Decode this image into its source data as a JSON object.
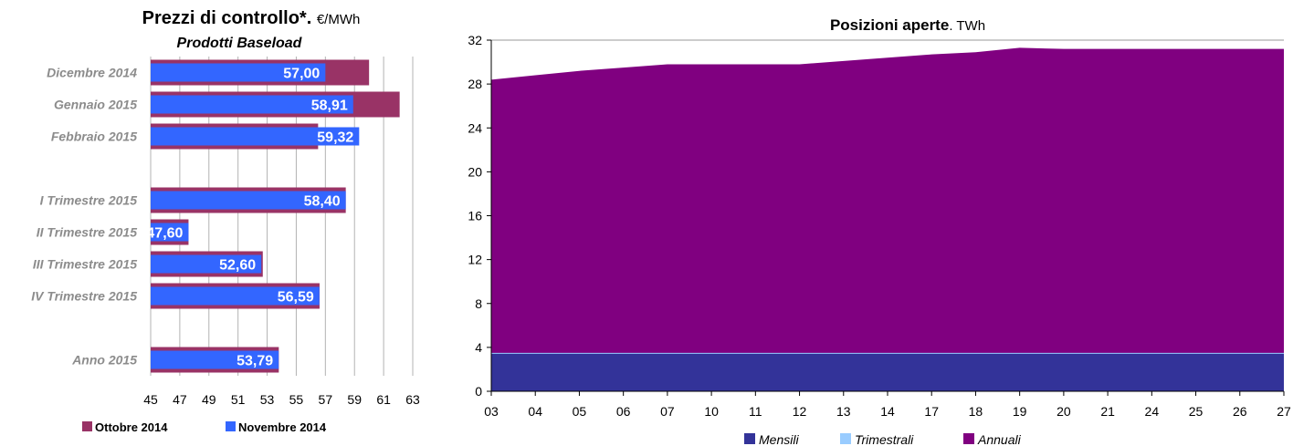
{
  "chart_data": [
    {
      "type": "bar",
      "orientation": "horizontal",
      "title": "Prezzi di controllo*.",
      "title_unit": "€/MWh",
      "subtitle": "Prodotti Baseload",
      "categories": [
        "Dicembre 2014",
        "Gennaio 2015",
        "Febbraio 2015",
        "",
        "I Trimestre 2015",
        "II Trimestre 2015",
        "III Trimestre 2015",
        "IV Trimestre 2015",
        "",
        "Anno 2015"
      ],
      "series": [
        {
          "name": "Ottobre 2014",
          "color": "#993366",
          "values": [
            60.0,
            62.1,
            56.5,
            null,
            58.4,
            47.6,
            52.7,
            56.6,
            null,
            53.8
          ]
        },
        {
          "name": "Novembre 2014",
          "color": "#3366FF",
          "values": [
            57.0,
            58.91,
            59.32,
            null,
            58.4,
            47.6,
            52.6,
            56.59,
            null,
            53.79
          ]
        }
      ],
      "data_labels": [
        "57,00",
        "58,91",
        "59,32",
        "",
        "58,40",
        "47,60",
        "52,60",
        "56,59",
        "",
        "53,79"
      ],
      "xlim": [
        45,
        63
      ],
      "xticks": [
        "45",
        "47",
        "49",
        "51",
        "53",
        "55",
        "57",
        "59",
        "61",
        "63"
      ],
      "grid": true,
      "legend_position": "bottom"
    },
    {
      "type": "area",
      "stacked": true,
      "title": "Posizioni aperte",
      "title_unit": "TWh",
      "x": [
        "03",
        "04",
        "05",
        "06",
        "07",
        "10",
        "11",
        "12",
        "13",
        "14",
        "17",
        "18",
        "19",
        "20",
        "21",
        "24",
        "25",
        "26",
        "27"
      ],
      "series": [
        {
          "name": "Mensili",
          "color": "#333399",
          "values": [
            3.5,
            3.5,
            3.5,
            3.5,
            3.5,
            3.5,
            3.5,
            3.5,
            3.5,
            3.5,
            3.5,
            3.5,
            3.5,
            3.5,
            3.5,
            3.5,
            3.5,
            3.5,
            3.5
          ]
        },
        {
          "name": "Trimestrali",
          "color": "#99CCFF",
          "values": [
            0,
            0,
            0,
            0,
            0,
            0,
            0,
            0,
            0,
            0,
            0,
            0,
            0,
            0,
            0,
            0,
            0,
            0,
            0
          ]
        },
        {
          "name": "Annuali",
          "color": "#800080",
          "values": [
            24.9,
            25.3,
            25.7,
            26.0,
            26.3,
            26.3,
            26.3,
            26.3,
            26.6,
            26.9,
            27.2,
            27.4,
            27.8,
            27.7,
            27.7,
            27.7,
            27.7,
            27.7,
            27.7
          ]
        }
      ],
      "ylim": [
        0,
        32
      ],
      "yticks": [
        "0",
        "4",
        "8",
        "12",
        "16",
        "20",
        "24",
        "28",
        "32"
      ],
      "grid": false,
      "legend_position": "bottom"
    }
  ]
}
